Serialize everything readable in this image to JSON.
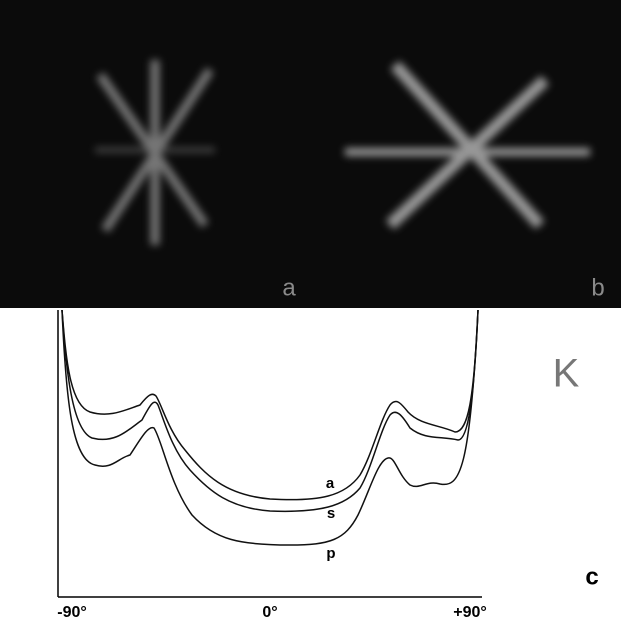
{
  "panels": {
    "a": "a",
    "b": "b",
    "c": "c"
  },
  "curve_labels": [
    "a",
    "s",
    "p"
  ],
  "symbol": "K",
  "x_ticks": [
    "-90°",
    "0°",
    "+90°"
  ]
}
